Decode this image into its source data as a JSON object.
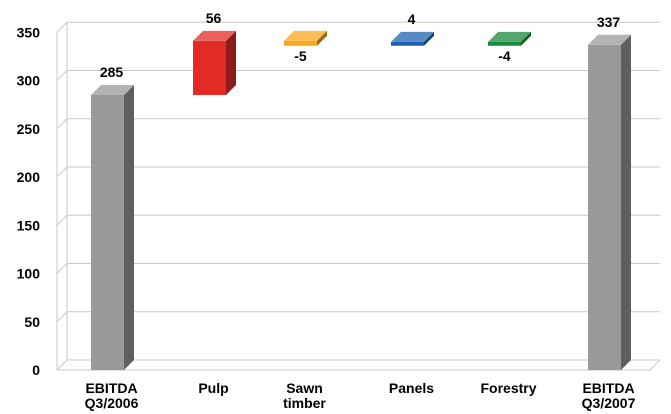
{
  "chart_data": {
    "type": "bar",
    "subtype": "waterfall-3d",
    "title": "",
    "xlabel": "",
    "ylabel": "",
    "ylim": [
      0,
      350
    ],
    "yticks": [
      0,
      50,
      100,
      150,
      200,
      250,
      300,
      350
    ],
    "grid": true,
    "legend": "none",
    "categories": [
      [
        "EBITDA",
        "Q3/2006"
      ],
      [
        "Pulp"
      ],
      [
        "Sawn",
        "timber"
      ],
      [
        "Panels"
      ],
      [
        "Forestry"
      ],
      [
        "EBITDA",
        "Q3/2007"
      ]
    ],
    "bars": [
      {
        "kind": "total",
        "start": 0,
        "end": 285,
        "label": "285",
        "color": "#9a9a9a"
      },
      {
        "kind": "delta",
        "start": 285,
        "end": 341,
        "label": "56",
        "color": "#e32b26"
      },
      {
        "kind": "delta",
        "start": 341,
        "end": 336,
        "label": "-5",
        "color": "#f8a81c"
      },
      {
        "kind": "delta",
        "start": 336,
        "end": 340,
        "label": "4",
        "color": "#1f62b1"
      },
      {
        "kind": "delta",
        "start": 340,
        "end": 336,
        "label": "-4",
        "color": "#1a8a3a"
      },
      {
        "kind": "total",
        "start": 0,
        "end": 337,
        "label": "337",
        "color": "#9a9a9a"
      }
    ]
  }
}
